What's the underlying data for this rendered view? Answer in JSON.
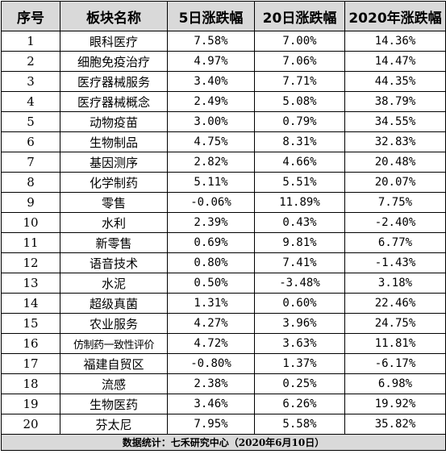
{
  "headers": [
    "序号",
    "板块名称",
    "5日涨跌幅",
    "20日涨跌幅",
    "2020年涨跌幅"
  ],
  "rows": [
    [
      "1",
      "眼科医疗",
      "7.58%",
      "7.00%",
      "14.36%"
    ],
    [
      "2",
      "细胞免疫治疗",
      "4.97%",
      "7.06%",
      "14.47%"
    ],
    [
      "3",
      "医疗器械服务",
      "3.40%",
      "7.71%",
      "44.35%"
    ],
    [
      "4",
      "医疗器械概念",
      "2.49%",
      "5.08%",
      "38.79%"
    ],
    [
      "5",
      "动物疫苗",
      "3.00%",
      "0.79%",
      "34.55%"
    ],
    [
      "6",
      "生物制品",
      "4.75%",
      "8.31%",
      "32.83%"
    ],
    [
      "7",
      "基因测序",
      "2.82%",
      "4.66%",
      "20.48%"
    ],
    [
      "8",
      "化学制药",
      "5.11%",
      "5.51%",
      "20.07%"
    ],
    [
      "9",
      "零售",
      "-0.06%",
      "11.89%",
      "7.75%"
    ],
    [
      "10",
      "水利",
      "2.39%",
      "0.43%",
      "-2.40%"
    ],
    [
      "11",
      "新零售",
      "0.69%",
      "9.81%",
      "6.77%"
    ],
    [
      "12",
      "语音技术",
      "0.80%",
      "7.41%",
      "-1.43%"
    ],
    [
      "13",
      "水泥",
      "0.50%",
      "-3.48%",
      "3.18%"
    ],
    [
      "14",
      "超级真菌",
      "1.31%",
      "0.60%",
      "22.46%"
    ],
    [
      "15",
      "农业服务",
      "4.27%",
      "3.96%",
      "24.75%"
    ],
    [
      "16",
      "仿制药一致性评价",
      "4.72%",
      "3.63%",
      "11.81%"
    ],
    [
      "17",
      "福建自贸区",
      "-0.80%",
      "1.37%",
      "-6.17%"
    ],
    [
      "18",
      "流感",
      "2.38%",
      "0.25%",
      "6.98%"
    ],
    [
      "19",
      "生物医药",
      "3.46%",
      "6.26%",
      "19.92%"
    ],
    [
      "20",
      "芬太尼",
      "7.95%",
      "5.58%",
      "35.82%"
    ]
  ],
  "footer": "数据统计：七禾研究中心（2020年6月10日）"
}
